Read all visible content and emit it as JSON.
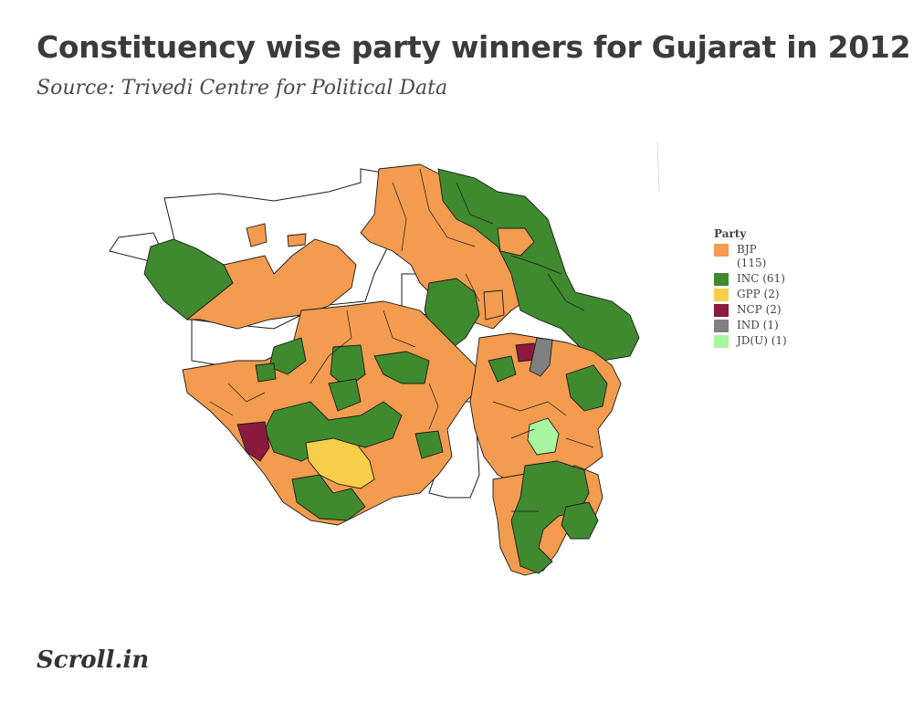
{
  "header": {
    "title": "Constituency wise party winners for Gujarat in 2012",
    "subtitle": "Source: Trivedi Centre for Political Data"
  },
  "legend": {
    "title": "Party",
    "items": [
      {
        "party": "BJP",
        "label": "BJP (115)",
        "seats": 115,
        "color": "#f39b4f"
      },
      {
        "party": "INC",
        "label": "INC (61)",
        "seats": 61,
        "color": "#3f8a2f"
      },
      {
        "party": "GPP",
        "label": "GPP (2)",
        "seats": 2,
        "color": "#f7cf4b"
      },
      {
        "party": "NCP",
        "label": "NCP (2)",
        "seats": 2,
        "color": "#8b1a3d"
      },
      {
        "party": "IND",
        "label": "IND (1)",
        "seats": 1,
        "color": "#808080"
      },
      {
        "party": "JD(U)",
        "label": "JD(U) (1)",
        "seats": 1,
        "color": "#a8f59f"
      }
    ]
  },
  "map": {
    "region": "Gujarat",
    "outline_color": "#1a1a1a",
    "uncontested_fill": "#ffffff"
  },
  "footer": {
    "brand": "Scroll.in"
  }
}
